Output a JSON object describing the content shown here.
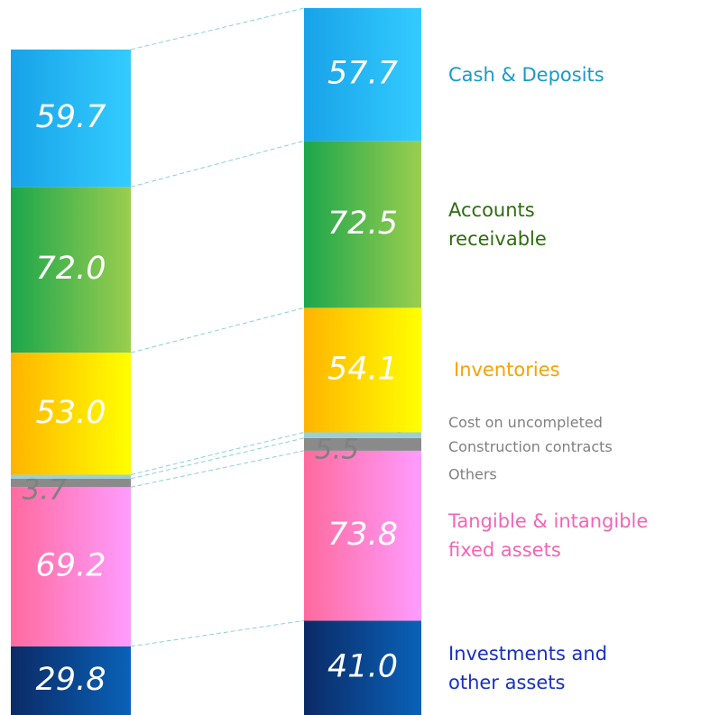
{
  "chart_data": {
    "type": "stacked_bar",
    "categories": [
      null,
      null
    ],
    "series": [
      {
        "name": "Investments and\nother assets",
        "color": "#1a30c0",
        "colors": [
          "#0b2a66",
          "#0a62b8"
        ],
        "values": [
          29.8,
          41.0
        ],
        "value_labels": [
          "29.8",
          "41.0"
        ]
      },
      {
        "name": "Tangible & intangible\nfixed assets",
        "color": "#f464b4",
        "colors": [
          "#ff6a9e",
          "#ff9cff"
        ],
        "values": [
          69.2,
          73.8
        ],
        "value_labels": [
          "69.2",
          "73.8"
        ]
      },
      {
        "name": "Others",
        "color": "#808080",
        "colors": [
          "#8a8a8a",
          "#8a8a8a"
        ],
        "values": [
          3.7,
          5.5
        ],
        "value_labels": [
          "3.7",
          "5.5"
        ]
      },
      {
        "name": "Cost on uncompleted\nConstruction contracts",
        "color": "#808080",
        "colors": [
          "#9ccfd6",
          "#9ccfd6"
        ],
        "values": [
          1.7,
          2.5
        ],
        "value_labels": [
          "1.7",
          "2.5"
        ]
      },
      {
        "name": "Inventories",
        "color": "#f5a300",
        "colors": [
          "#ffb400",
          "#ffff00"
        ],
        "values": [
          53.0,
          54.1
        ],
        "value_labels": [
          "53.0",
          "54.1"
        ]
      },
      {
        "name": "Accounts\nreceivable",
        "color": "#2f6b10",
        "colors": [
          "#1ca64c",
          "#9bce4e"
        ],
        "values": [
          72.0,
          72.5
        ],
        "value_labels": [
          "72.0",
          "72.5"
        ]
      },
      {
        "name": "Cash & Deposits",
        "color": "#1a9ac8",
        "colors": [
          "#18a2e8",
          "#33ccff"
        ],
        "values": [
          59.7,
          57.7
        ],
        "value_labels": [
          "59.7",
          "57.7"
        ]
      }
    ]
  }
}
